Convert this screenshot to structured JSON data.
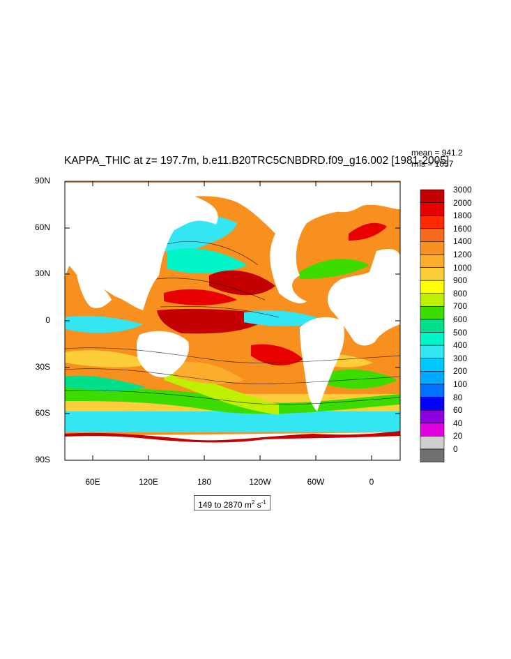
{
  "title": "KAPPA_THIC at z= 197.7m, b.e11.B20TRC5CNBDRD.f09_g16.002 [1981-2005]",
  "stats": {
    "mean": "mean = 941.2",
    "rms": "rms = 1057"
  },
  "lat_labels": [
    "90N",
    "60N",
    "30N",
    "0",
    "30S",
    "60S",
    "90S"
  ],
  "lon_labels": [
    "60E",
    "120E",
    "180",
    "120W",
    "60W",
    "0"
  ],
  "colorbar": {
    "levels": [
      "3000",
      "2000",
      "1800",
      "1600",
      "1400",
      "1200",
      "1000",
      "900",
      "800",
      "700",
      "600",
      "500",
      "400",
      "300",
      "200",
      "100",
      "80",
      "60",
      "40",
      "20",
      "0"
    ],
    "colors": [
      "#c40000",
      "#e80000",
      "#ff2a00",
      "#f46a1e",
      "#f7901e",
      "#fbad2b",
      "#fcce3a",
      "#ffff00",
      "#bff000",
      "#3ddc00",
      "#00e08c",
      "#00f5c9",
      "#33e6f2",
      "#00c7ff",
      "#00a8ff",
      "#0072ff",
      "#0000ff",
      "#8f00e0",
      "#e000e0",
      "#cfcfcf",
      "#707070"
    ]
  },
  "units": {
    "range": "149 to 2870",
    "unit": "m",
    "exp1": "2",
    "unit2": " s",
    "exp2": "-1"
  },
  "colors": {
    "land": "#ffffff",
    "frame": "#000000"
  }
}
